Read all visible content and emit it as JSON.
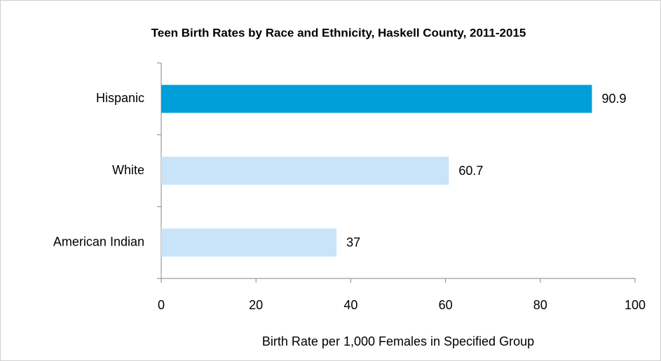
{
  "chart_data": {
    "type": "bar",
    "orientation": "horizontal",
    "title": "Teen Birth Rates by Race and Ethnicity, Haskell County, 2011-2015",
    "categories": [
      "Hispanic",
      "White",
      "American Indian"
    ],
    "values": [
      90.9,
      60.7,
      37
    ],
    "colors": [
      "#009fd9",
      "#c9e3f9",
      "#c9e3f9"
    ],
    "xlabel": "Birth Rate per 1,000 Females in Specified Group",
    "xlim": [
      0,
      100
    ],
    "xticks": [
      0,
      20,
      40,
      60,
      80,
      100
    ],
    "grid": false
  }
}
